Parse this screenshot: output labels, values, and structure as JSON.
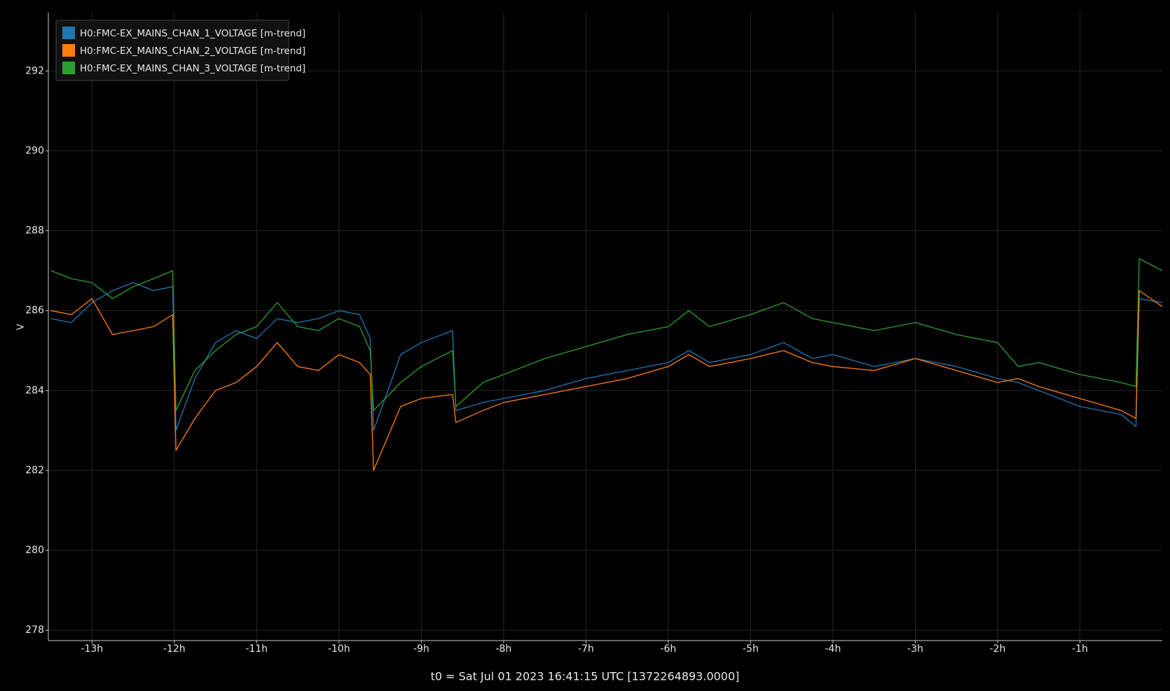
{
  "chart_data": {
    "type": "line",
    "xlabel": "t0 = Sat Jul 01 2023 16:41:15 UTC [1372264893.0000]",
    "ylabel": "V",
    "xlim": [
      -13.53,
      0
    ],
    "ylim": [
      277.74,
      293.46
    ],
    "xticks": [
      {
        "value": -13,
        "label": "-13h"
      },
      {
        "value": -12,
        "label": "-12h"
      },
      {
        "value": -11,
        "label": "-11h"
      },
      {
        "value": -10,
        "label": "-10h"
      },
      {
        "value": -9,
        "label": "-9h"
      },
      {
        "value": -8,
        "label": "-8h"
      },
      {
        "value": -7,
        "label": "-7h"
      },
      {
        "value": -6,
        "label": "-6h"
      },
      {
        "value": -5,
        "label": "-5h"
      },
      {
        "value": -4,
        "label": "-4h"
      },
      {
        "value": -3,
        "label": "-3h"
      },
      {
        "value": -2,
        "label": "-2h"
      },
      {
        "value": -1,
        "label": "-1h"
      }
    ],
    "yticks": [
      278,
      280,
      282,
      284,
      286,
      288,
      290,
      292
    ],
    "grid": true,
    "legend": "upper left",
    "x": [
      -13.5,
      -13.25,
      -13,
      -12.75,
      -12.5,
      -12.25,
      -12.02,
      -11.98,
      -11.75,
      -11.5,
      -11.25,
      -11,
      -10.75,
      -10.5,
      -10.25,
      -10,
      -9.75,
      -9.62,
      -9.58,
      -9.25,
      -9,
      -8.62,
      -8.58,
      -8.25,
      -8,
      -7.5,
      -7,
      -6.5,
      -6,
      -5.75,
      -5.5,
      -5,
      -4.6,
      -4.25,
      -4,
      -3.5,
      -3,
      -2.5,
      -2,
      -1.75,
      -1.5,
      -1,
      -0.5,
      -0.32,
      -0.28,
      0
    ],
    "series": [
      {
        "name": "H0:FMC-EX_MAINS_CHAN_1_VOLTAGE [m-trend]",
        "color": "#1f77b4",
        "values": [
          285.8,
          285.7,
          286.2,
          286.5,
          286.7,
          286.5,
          286.6,
          283.0,
          284.3,
          285.2,
          285.5,
          285.3,
          285.8,
          285.7,
          285.8,
          286.0,
          285.9,
          285.3,
          283.0,
          284.9,
          285.2,
          285.5,
          283.5,
          283.7,
          283.8,
          284.0,
          284.3,
          284.5,
          284.7,
          285.0,
          284.7,
          284.9,
          285.2,
          284.8,
          284.9,
          284.6,
          284.8,
          284.6,
          284.3,
          284.2,
          284.0,
          283.6,
          283.4,
          283.1,
          286.3,
          286.2
        ]
      },
      {
        "name": "H0:FMC-EX_MAINS_CHAN_2_VOLTAGE [m-trend]",
        "color": "#ff7f0e",
        "values": [
          286.0,
          285.9,
          286.3,
          285.4,
          285.5,
          285.6,
          285.9,
          282.5,
          283.3,
          284.0,
          284.2,
          284.6,
          285.2,
          284.6,
          284.5,
          284.9,
          284.7,
          284.4,
          282.0,
          283.6,
          283.8,
          283.9,
          283.2,
          283.5,
          283.7,
          283.9,
          284.1,
          284.3,
          284.6,
          284.9,
          284.6,
          284.8,
          285.0,
          284.7,
          284.6,
          284.5,
          284.8,
          284.5,
          284.2,
          284.3,
          284.1,
          283.8,
          283.5,
          283.3,
          286.5,
          286.1
        ]
      },
      {
        "name": "H0:FMC-EX_MAINS_CHAN_3_VOLTAGE [m-trend]",
        "color": "#2ca02c",
        "values": [
          287.0,
          286.8,
          286.7,
          286.3,
          286.6,
          286.8,
          287.0,
          283.5,
          284.5,
          285.0,
          285.4,
          285.6,
          286.2,
          285.6,
          285.5,
          285.8,
          285.6,
          285.0,
          283.5,
          284.2,
          284.6,
          285.0,
          283.6,
          284.2,
          284.4,
          284.8,
          285.1,
          285.4,
          285.6,
          286.0,
          285.6,
          285.9,
          286.2,
          285.8,
          285.7,
          285.5,
          285.7,
          285.4,
          285.2,
          284.6,
          284.7,
          284.4,
          284.2,
          284.1,
          287.3,
          287.0
        ]
      }
    ]
  }
}
